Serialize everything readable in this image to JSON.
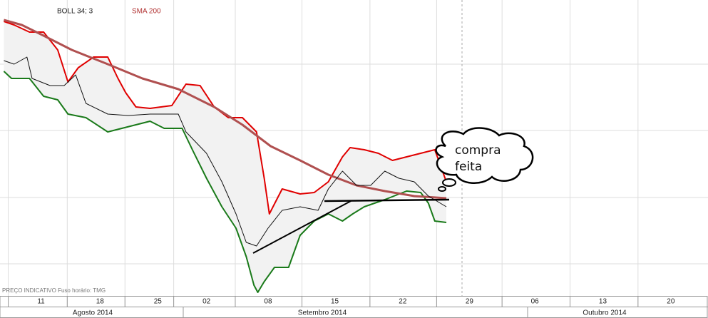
{
  "chart_data": {
    "type": "line",
    "indicator_label": "BOLL 34; 3",
    "footnote": "PREÇO INDICATIVO   Fuso horário: TMG",
    "annotation": [
      "compra",
      "feita"
    ],
    "months": [
      "Agosto 2014",
      "Setembro 2014",
      "Outubro 2014"
    ],
    "xlim": [
      -3.2,
      52
    ],
    "ylim": [
      0,
      415
    ],
    "xticks": [
      {
        "value": 0,
        "label": "11"
      },
      {
        "value": 4.6,
        "label": "18"
      },
      {
        "value": 9.1,
        "label": "25"
      },
      {
        "value": 12.9,
        "label": "02"
      },
      {
        "value": 17.7,
        "label": "08"
      },
      {
        "value": 22.9,
        "label": "15"
      },
      {
        "value": 28.2,
        "label": "22"
      },
      {
        "value": 33.4,
        "label": "29"
      },
      {
        "value": 38.5,
        "label": "06"
      },
      {
        "value": 43.8,
        "label": "13"
      },
      {
        "value": 49.1,
        "label": "20"
      }
    ],
    "ygrid": [
      45,
      138,
      232,
      325
    ],
    "band_fill": "#f2f2f2",
    "series": [
      {
        "color": "#e00000",
        "band": "upper",
        "x": [
          -2.9,
          -2.1,
          -0.9,
          0.2,
          1.3,
          2.1,
          2.9,
          4.1,
          5.2,
          6,
          6.6,
          7.4,
          8.5,
          10.2,
          11.3,
          12.4,
          13.5,
          14.6,
          15.7,
          16.8,
          17.4,
          17.8,
          18.8,
          20.2,
          21.3,
          22.4,
          23.5,
          24.1,
          25.2,
          26.3,
          27.4,
          28.5,
          29.6,
          30.7,
          31.6
        ],
        "values": [
          385,
          380,
          370,
          370,
          345,
          300,
          320,
          335,
          335,
          305,
          285,
          265,
          263,
          267,
          297,
          295,
          265,
          250,
          250,
          230,
          165,
          115,
          150,
          143,
          145,
          160,
          195,
          208,
          205,
          200,
          190,
          195,
          200,
          205,
          160
        ]
      },
      {
        "color": "#1a7a1a",
        "band": "lower",
        "x": [
          -2.9,
          -2.3,
          -0.9,
          0.2,
          1.3,
          2.1,
          3.5,
          5.2,
          6.3,
          7.4,
          8.5,
          9.6,
          11,
          11.8,
          12.9,
          14.1,
          15.2,
          16,
          16.6,
          16.9,
          17.4,
          18.2,
          19.3,
          20.2,
          21.3,
          22.4,
          23.5,
          24.3,
          25.2,
          26.8,
          28.5,
          29.6,
          30.2,
          30.7,
          31.6
        ],
        "values": [
          315,
          305,
          305,
          280,
          275,
          255,
          250,
          230,
          235,
          240,
          245,
          235,
          235,
          205,
          165,
          125,
          95,
          55,
          15,
          5,
          20,
          40,
          40,
          85,
          105,
          115,
          105,
          115,
          125,
          135,
          147,
          145,
          130,
          105,
          103
        ]
      },
      {
        "name": "SMA 200",
        "color": "#b05050",
        "x": [
          -2.9,
          -1.5,
          0.2,
          2.4,
          5.2,
          7.9,
          10.7,
          13.5,
          15.7,
          17.9,
          20.2,
          22.4,
          24.6,
          26.8,
          29.1,
          31.6
        ],
        "values": [
          387,
          380,
          365,
          345,
          325,
          305,
          290,
          265,
          240,
          210,
          190,
          170,
          155,
          147,
          140,
          137
        ]
      },
      {
        "color": "#111111",
        "x": [
          -2.9,
          -2.1,
          -1.1,
          -0.7,
          0.7,
          1.8,
          2.7,
          3.5,
          5.2,
          6.8,
          8.5,
          10.7,
          11.3,
          12.9,
          14.1,
          15.2,
          16,
          16.8,
          17.7,
          18.8,
          20.2,
          21.6,
          22.4,
          23.5,
          24.6,
          25.7,
          26.8,
          27.9,
          29.1,
          30.2,
          31.6
        ],
        "values": [
          330,
          325,
          335,
          305,
          295,
          295,
          310,
          270,
          255,
          253,
          255,
          255,
          230,
          200,
          160,
          115,
          75,
          70,
          95,
          120,
          125,
          120,
          150,
          175,
          155,
          155,
          175,
          165,
          160,
          140,
          125
        ]
      }
    ]
  }
}
